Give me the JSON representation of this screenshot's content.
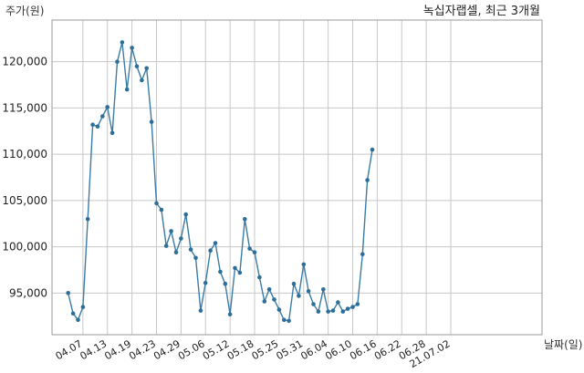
{
  "chart_data": {
    "type": "line",
    "title": "녹십자랩셀, 최근 3개월",
    "xlabel": "날짜(일)",
    "ylabel": "주가(원)",
    "ylim": [
      90500,
      124500
    ],
    "xlim": [
      -3.3,
      96.6
    ],
    "yticks": [
      95000,
      100000,
      105000,
      110000,
      115000,
      120000
    ],
    "ytick_labels": [
      "95,000",
      "100,000",
      "105,000",
      "110,000",
      "115,000",
      "120,000"
    ],
    "xticks": [
      {
        "label": "04.07",
        "pos": 3
      },
      {
        "label": "04.13",
        "pos": 8
      },
      {
        "label": "04.19",
        "pos": 13
      },
      {
        "label": "04.23",
        "pos": 18
      },
      {
        "label": "04.29",
        "pos": 23
      },
      {
        "label": "05.06",
        "pos": 28
      },
      {
        "label": "05.12",
        "pos": 33
      },
      {
        "label": "05.18",
        "pos": 38
      },
      {
        "label": "05.25",
        "pos": 43
      },
      {
        "label": "05.31",
        "pos": 48
      },
      {
        "label": "06.04",
        "pos": 53
      },
      {
        "label": "06.10",
        "pos": 58
      },
      {
        "label": "06.16",
        "pos": 63
      },
      {
        "label": "06.22",
        "pos": 68
      },
      {
        "label": "06.28",
        "pos": 73
      },
      {
        "label": "21.07.02",
        "pos": 78
      }
    ],
    "grid": true,
    "values": [
      95000,
      92800,
      92100,
      93500,
      103000,
      113200,
      113000,
      114100,
      115100,
      112300,
      120000,
      122100,
      117000,
      121500,
      119500,
      118000,
      119300,
      113500,
      104700,
      104000,
      100100,
      101700,
      99400,
      100900,
      103500,
      99700,
      98800,
      93100,
      96100,
      99600,
      100400,
      97300,
      96000,
      92700,
      97700,
      97200,
      103000,
      99800,
      99400,
      96700,
      94100,
      95400,
      94300,
      93200,
      92100,
      92000,
      96000,
      94700,
      98100,
      95200,
      93800,
      93000,
      95400,
      93000,
      93100,
      94000,
      93000,
      93300,
      93500,
      93800,
      99200,
      107200,
      110500
    ],
    "color": "#3a7ca5"
  }
}
